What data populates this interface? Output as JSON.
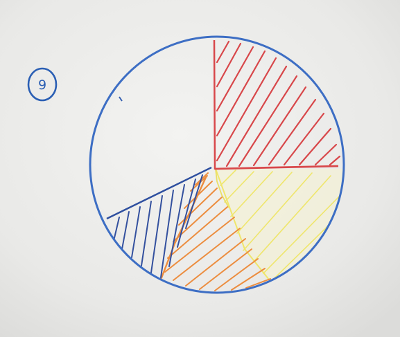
{
  "page": {
    "background": "#e9e9e7"
  },
  "badge": {
    "number": "9",
    "color": "#2b5fb4"
  },
  "pie": {
    "outline_color": "#3d6ec4",
    "slices": [
      {
        "name": "red-hatched",
        "color": "#d8474a",
        "fraction": 0.25,
        "hatched": true
      },
      {
        "name": "yellow-hatched",
        "color": "#efe66c",
        "fraction": 0.15,
        "hatched": true
      },
      {
        "name": "orange-hatched",
        "color": "#ec8d3f",
        "fraction": 0.15,
        "hatched": true
      },
      {
        "name": "blue-hatched",
        "color": "#33509e",
        "fraction": 0.1,
        "hatched": true
      },
      {
        "name": "unshaded",
        "color": "#ffffff",
        "fraction": 0.35,
        "hatched": false
      }
    ]
  }
}
